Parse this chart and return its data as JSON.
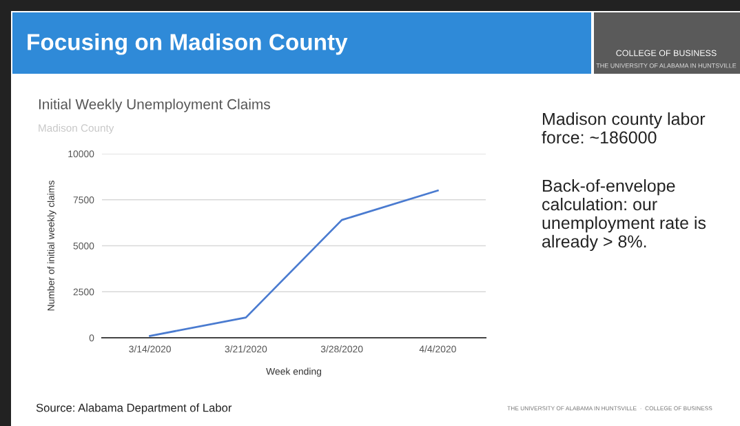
{
  "chart_data": {
    "type": "line",
    "title": "Initial Weekly Unemployment Claims",
    "subtitle": "Madison County",
    "xlabel": "Week ending",
    "ylabel": "Number of initial weekly claims",
    "categories": [
      "3/14/2020",
      "3/21/2020",
      "3/28/2020",
      "4/4/2020"
    ],
    "series": [
      {
        "color": "#4a7bd0",
        "values": [
          100,
          1100,
          6400,
          8000
        ]
      }
    ],
    "ylim": [
      0,
      10000
    ],
    "yticks": [
      0,
      2500,
      5000,
      7500,
      10000
    ],
    "grid": "y",
    "marker": "none",
    "line_style": "solid",
    "annotations": [
      "Focusing on Madison County",
      "COLLEGE OF BUSINESS",
      "THE UNIVERSITY OF ALABAMA IN HUNTSVILLE",
      "Madison county labor force: ~186000",
      "Back-of-envelope calculation: our unemployment rate is already > 8%.",
      "Source: Alabama Department of Labor",
      "THE UNIVERSITY OF ALABAMA IN HUNTSVILLE  ·  COLLEGE OF BUSINESS"
    ]
  }
}
